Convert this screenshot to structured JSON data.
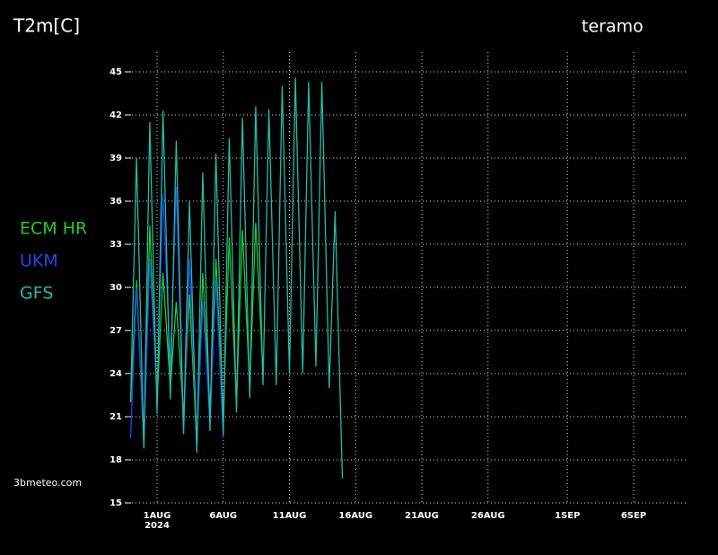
{
  "chart_data": {
    "type": "line",
    "title": "T2m[C]",
    "location": "teramo",
    "source": "3bmeteo.com",
    "year_label": "2024",
    "grid": true,
    "xlim": [
      -2.17,
      40
    ],
    "xticks": [
      {
        "value": 0,
        "label": "1AUG"
      },
      {
        "value": 5,
        "label": "6AUG"
      },
      {
        "value": 10,
        "label": "11AUG"
      },
      {
        "value": 15,
        "label": "16AUG"
      },
      {
        "value": 20,
        "label": "21AUG"
      },
      {
        "value": 25,
        "label": "26AUG"
      },
      {
        "value": 31,
        "label": "1SEP"
      },
      {
        "value": 36,
        "label": "6SEP"
      }
    ],
    "ylim": [
      15,
      45
    ],
    "yticks": [
      15,
      18,
      21,
      24,
      27,
      30,
      33,
      36,
      39,
      42,
      45
    ],
    "x": [
      -2,
      -1.55,
      -1,
      -0.55,
      0,
      0.45,
      1,
      1.45,
      2,
      2.45,
      3,
      3.45,
      4,
      4.45,
      5,
      5.45,
      6,
      6.45,
      7,
      7.45,
      8,
      8.45,
      9,
      9.45,
      10,
      10.45,
      11,
      11.45,
      12,
      12.45,
      13,
      13.45,
      14
    ],
    "series": [
      {
        "name": "ECM  HR",
        "color": "#22cc22",
        "values": [
          22,
          30.5,
          19,
          34.3,
          22,
          31,
          23,
          29,
          21,
          29.5,
          19,
          31,
          21.5,
          32,
          21,
          33.5,
          22,
          34,
          23,
          34.5,
          24,
          null,
          null,
          null,
          null,
          null,
          null,
          null,
          null,
          null,
          null,
          null,
          null
        ]
      },
      {
        "name": "UKM",
        "color": "#2244ee",
        "values": [
          19.5,
          30,
          19,
          32,
          22.5,
          36.5,
          24.5,
          37,
          19.8,
          32,
          19,
          29,
          20.5,
          30.5,
          19.5,
          null,
          null,
          null,
          null,
          null,
          null,
          null,
          null,
          null,
          null,
          null,
          null,
          null,
          null,
          null,
          null,
          null,
          null
        ]
      },
      {
        "name": "GFS",
        "color": "#22bbaa",
        "values": [
          22,
          39,
          18.8,
          41.5,
          21.2,
          42.3,
          22.2,
          40.2,
          19.8,
          36,
          18.5,
          38,
          20,
          39.3,
          19.7,
          40.4,
          21.3,
          41.8,
          22.3,
          42.6,
          23.2,
          42.4,
          23.2,
          44,
          24,
          44.6,
          24,
          44.3,
          24.5,
          44.3,
          23,
          35.3,
          16.7
        ]
      }
    ]
  }
}
